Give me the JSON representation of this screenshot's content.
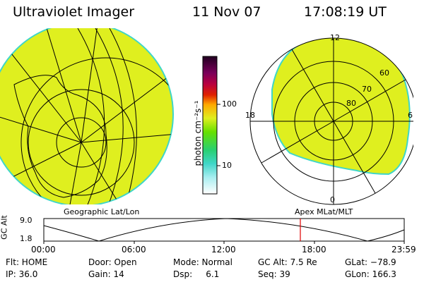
{
  "header": {
    "title": "Ultraviolet Imager",
    "date": "11 Nov 07",
    "time": "17:08:19 UT"
  },
  "colorbar": {
    "unit_label": "photon cm⁻²s⁻¹",
    "tick_100": "100",
    "tick_10": "10"
  },
  "left_map": {
    "caption": "Geographic Lat/Lon"
  },
  "right_map": {
    "caption": "Apex  MLat/MLT",
    "mlt_12": "12",
    "mlt_18": "18",
    "mlt_6": "6",
    "mlt_0": "0",
    "lat_60": "60",
    "lat_70": "70",
    "lat_80": "80"
  },
  "orbit": {
    "ylabel": "GC Alt",
    "ymax": "9.0",
    "ymin": "1.8",
    "t0": "00:00",
    "t1": "06:00",
    "t2": "12:00",
    "t3": "18:00",
    "t4": "23:59",
    "current_marker_time": "17:08"
  },
  "status": {
    "flt": "Flt: HOME",
    "ip": "IP: 36.0",
    "door": "Door: Open",
    "gain": "Gain: 14",
    "mode": "Mode: Normal",
    "dsp": "Dsp:     6.1",
    "gcalt": "GC Alt: 7.5 Re",
    "seq": "Seq: 39",
    "glat": "GLat: −78.9",
    "glon": "GLon: 166.3"
  },
  "colors": {
    "fill": "#dfef1f",
    "edge": "#3fd6c8",
    "marker": "#e00000"
  }
}
